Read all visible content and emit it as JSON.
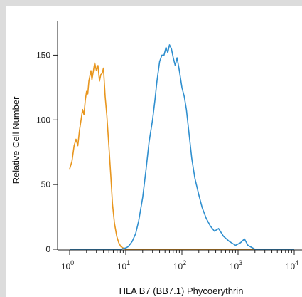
{
  "chart_data": {
    "type": "line",
    "title": "",
    "xlabel": "HLA B7 (BB7.1) Phycoerythrin",
    "ylabel": "Relative Cell Number",
    "x_scale": "log",
    "xlim": [
      1,
      10000
    ],
    "ylim": [
      0,
      175
    ],
    "x_tick_base": "10",
    "x_tick_exponents": [
      "0",
      "1",
      "2",
      "3",
      "4"
    ],
    "y_ticks": [
      0,
      50,
      100,
      150
    ],
    "grid": false,
    "legend": "none",
    "series": [
      {
        "color": "#e8961e",
        "x": [
          1,
          1.1,
          1.2,
          1.3,
          1.4,
          1.5,
          1.6,
          1.7,
          1.8,
          1.9,
          2.0,
          2.1,
          2.2,
          2.4,
          2.5,
          2.7,
          2.8,
          3.0,
          3.2,
          3.4,
          3.6,
          3.8,
          4.0,
          4.3,
          4.6,
          5.0,
          5.4,
          5.8,
          6.3,
          6.9,
          7.5,
          8.2,
          9.0,
          10,
          11,
          12,
          14,
          16,
          20,
          30,
          50,
          100,
          1000,
          10000
        ],
        "y": [
          62,
          68,
          80,
          85,
          80,
          92,
          100,
          108,
          104,
          115,
          122,
          120,
          130,
          138,
          131,
          140,
          144,
          138,
          142,
          130,
          135,
          136,
          140,
          118,
          103,
          80,
          57,
          35,
          20,
          10,
          5,
          2,
          1,
          0,
          0,
          0,
          0,
          0,
          0,
          0,
          0,
          0,
          0,
          0
        ]
      },
      {
        "color": "#2f8fcf",
        "x": [
          1,
          5,
          8,
          10,
          11,
          12,
          13,
          15,
          17,
          20,
          23,
          26,
          30,
          33,
          36,
          40,
          44,
          48,
          52,
          56,
          60,
          65,
          70,
          76,
          82,
          90,
          100,
          110,
          120,
          135,
          150,
          170,
          200,
          230,
          270,
          320,
          380,
          450,
          550,
          700,
          900,
          1100,
          1300,
          1500,
          2000,
          5000,
          10000
        ],
        "y": [
          0,
          0,
          0,
          1,
          2,
          4,
          6,
          12,
          22,
          40,
          62,
          83,
          100,
          115,
          130,
          145,
          150,
          150,
          156,
          152,
          158,
          155,
          148,
          142,
          148,
          138,
          125,
          118,
          108,
          88,
          70,
          55,
          42,
          32,
          24,
          18,
          14,
          16,
          10,
          6,
          3,
          5,
          8,
          3,
          0,
          0,
          0
        ]
      }
    ]
  }
}
